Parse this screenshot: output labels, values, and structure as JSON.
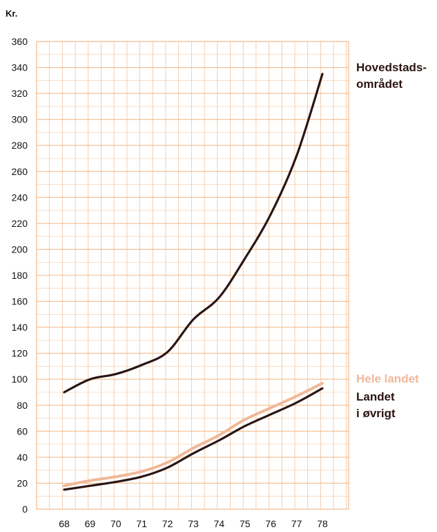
{
  "chart_data": {
    "type": "line",
    "unit_label": "Kr.",
    "x": [
      "68",
      "69",
      "70",
      "71",
      "72",
      "73",
      "74",
      "75",
      "76",
      "77",
      "78"
    ],
    "y_ticks": [
      0,
      20,
      40,
      60,
      80,
      100,
      120,
      140,
      160,
      180,
      200,
      220,
      240,
      260,
      280,
      300,
      320,
      340,
      360
    ],
    "ylim": [
      0,
      360
    ],
    "grid": true,
    "series": [
      {
        "name_lines": [
          "Hovedstads-",
          "området"
        ],
        "color": "#2a1512",
        "values": [
          90,
          100,
          104,
          111,
          121,
          146,
          163,
          193,
          227,
          272,
          335
        ]
      },
      {
        "name_lines": [
          "Hele landet"
        ],
        "color": "#f0b898",
        "values": [
          18,
          22,
          25,
          29,
          36,
          47,
          57,
          69,
          78,
          87,
          97
        ]
      },
      {
        "name_lines": [
          "Landet",
          "i øvrigt"
        ],
        "color": "#2a1512",
        "values": [
          15,
          18,
          21,
          25,
          32,
          43,
          53,
          64,
          73,
          82,
          93
        ]
      }
    ],
    "colors": {
      "grid": "#f2b888",
      "axis_text": "#111111"
    }
  }
}
